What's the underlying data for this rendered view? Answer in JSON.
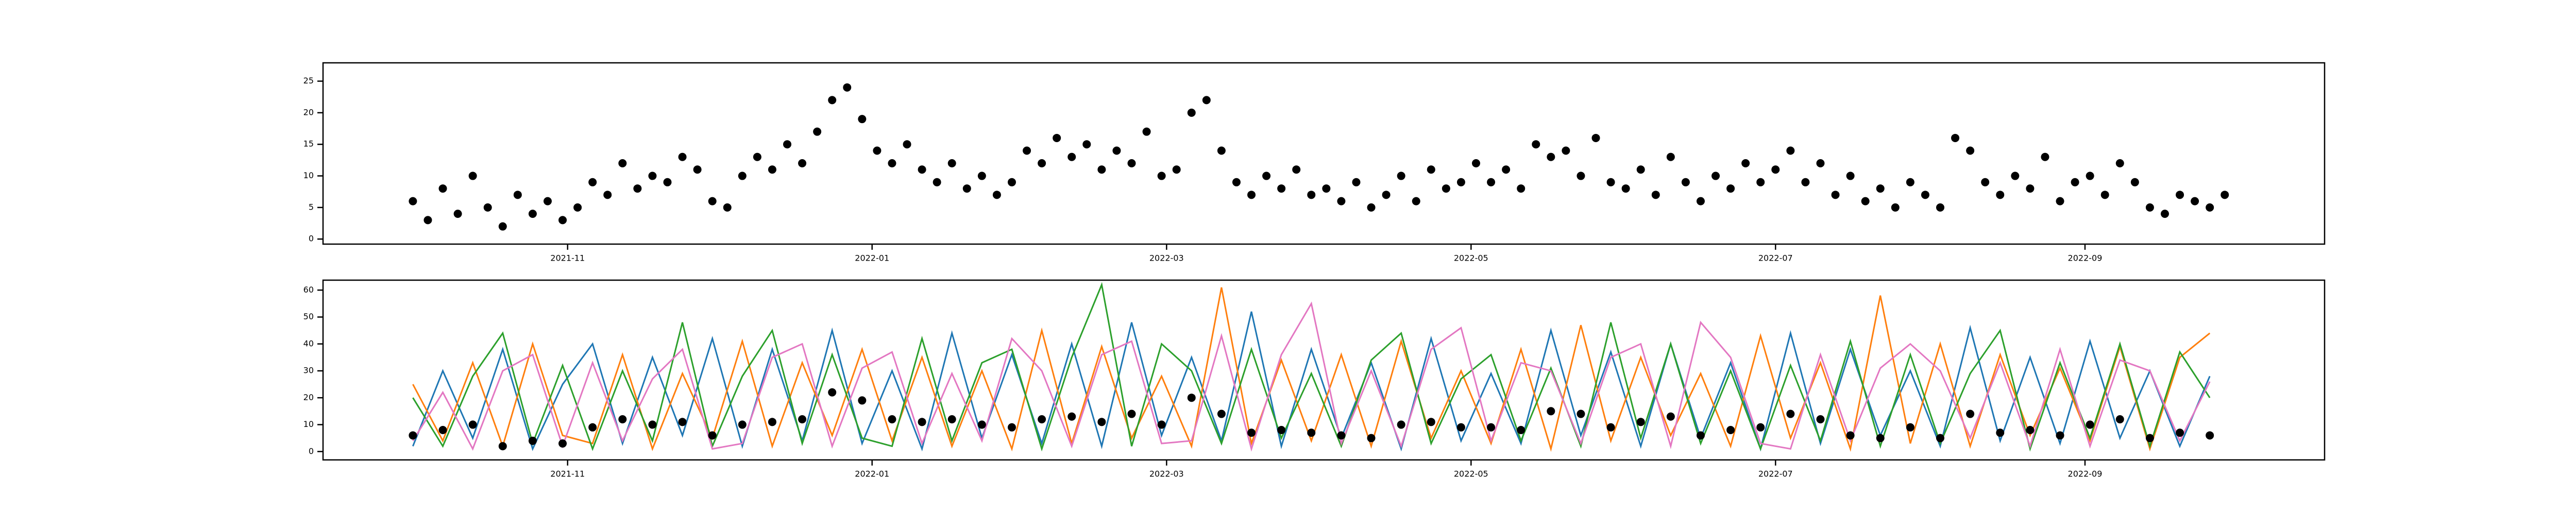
{
  "chart_data": [
    {
      "type": "scatter",
      "color": "#000000",
      "x": [
        "2021-10-01",
        "2021-10-04",
        "2021-10-07",
        "2021-10-10",
        "2021-10-13",
        "2021-10-16",
        "2021-10-19",
        "2021-10-22",
        "2021-10-25",
        "2021-10-28",
        "2021-10-31",
        "2021-11-03",
        "2021-11-06",
        "2021-11-09",
        "2021-11-12",
        "2021-11-15",
        "2021-11-18",
        "2021-11-21",
        "2021-11-24",
        "2021-11-27",
        "2021-11-30",
        "2021-12-03",
        "2021-12-06",
        "2021-12-09",
        "2021-12-12",
        "2021-12-15",
        "2021-12-18",
        "2021-12-21",
        "2021-12-24",
        "2021-12-27",
        "2021-12-30",
        "2022-01-02",
        "2022-01-05",
        "2022-01-08",
        "2022-01-11",
        "2022-01-14",
        "2022-01-17",
        "2022-01-20",
        "2022-01-23",
        "2022-01-26",
        "2022-01-29",
        "2022-02-01",
        "2022-02-04",
        "2022-02-07",
        "2022-02-10",
        "2022-02-13",
        "2022-02-16",
        "2022-02-19",
        "2022-02-22",
        "2022-02-25",
        "2022-02-28",
        "2022-03-03",
        "2022-03-06",
        "2022-03-09",
        "2022-03-12",
        "2022-03-15",
        "2022-03-18",
        "2022-03-21",
        "2022-03-24",
        "2022-03-27",
        "2022-03-30",
        "2022-04-02",
        "2022-04-05",
        "2022-04-08",
        "2022-04-11",
        "2022-04-14",
        "2022-04-17",
        "2022-04-20",
        "2022-04-23",
        "2022-04-26",
        "2022-04-29",
        "2022-05-02",
        "2022-05-05",
        "2022-05-08",
        "2022-05-11",
        "2022-05-14",
        "2022-05-17",
        "2022-05-20",
        "2022-05-23",
        "2022-05-26",
        "2022-05-29",
        "2022-06-01",
        "2022-06-04",
        "2022-06-07",
        "2022-06-10",
        "2022-06-13",
        "2022-06-16",
        "2022-06-19",
        "2022-06-22",
        "2022-06-25",
        "2022-06-28",
        "2022-07-01",
        "2022-07-04",
        "2022-07-07",
        "2022-07-10",
        "2022-07-13",
        "2022-07-16",
        "2022-07-19",
        "2022-07-22",
        "2022-07-25",
        "2022-07-28",
        "2022-07-31",
        "2022-08-03",
        "2022-08-06",
        "2022-08-09",
        "2022-08-12",
        "2022-08-15",
        "2022-08-18",
        "2022-08-21",
        "2022-08-24",
        "2022-08-27",
        "2022-08-30",
        "2022-09-02",
        "2022-09-05",
        "2022-09-08",
        "2022-09-11",
        "2022-09-14",
        "2022-09-17",
        "2022-09-20",
        "2022-09-23",
        "2022-09-26",
        "2022-09-29"
      ],
      "values": [
        6,
        3,
        8,
        4,
        10,
        5,
        2,
        7,
        4,
        6,
        3,
        5,
        9,
        7,
        12,
        8,
        10,
        9,
        13,
        11,
        6,
        5,
        10,
        13,
        11,
        15,
        12,
        17,
        22,
        24,
        19,
        14,
        12,
        15,
        11,
        9,
        12,
        8,
        10,
        7,
        9,
        14,
        12,
        16,
        13,
        15,
        11,
        14,
        12,
        17,
        10,
        11,
        20,
        22,
        14,
        9,
        7,
        10,
        8,
        11,
        7,
        8,
        6,
        9,
        5,
        7,
        10,
        6,
        11,
        8,
        9,
        12,
        9,
        11,
        8,
        15,
        13,
        14,
        10,
        16,
        9,
        8,
        11,
        7,
        13,
        9,
        6,
        10,
        8,
        12,
        9,
        11,
        14,
        9,
        12,
        7,
        10,
        6,
        8,
        5,
        9,
        7,
        5,
        16,
        14,
        9,
        7,
        10,
        8,
        13,
        6,
        9,
        10,
        7,
        12,
        9,
        5,
        4,
        7,
        6,
        5,
        7
      ],
      "xlim": [
        "2021-09-13",
        "2022-10-19"
      ],
      "xticks": [
        {
          "value": "2021-11-01",
          "label": "2021-11"
        },
        {
          "value": "2022-01-01",
          "label": "2022-01"
        },
        {
          "value": "2022-03-01",
          "label": "2022-03"
        },
        {
          "value": "2022-05-01",
          "label": "2022-05"
        },
        {
          "value": "2022-07-01",
          "label": "2022-07"
        },
        {
          "value": "2022-09-01",
          "label": "2022-09"
        }
      ],
      "ylim": [
        -0.8,
        27.9
      ],
      "yticks": [
        0,
        5,
        10,
        15,
        20,
        25
      ],
      "grid": false
    },
    {
      "type": "line",
      "x": [
        "2021-10-01",
        "2021-10-07",
        "2021-10-13",
        "2021-10-19",
        "2021-10-25",
        "2021-10-31",
        "2021-11-06",
        "2021-11-12",
        "2021-11-18",
        "2021-11-24",
        "2021-11-30",
        "2021-12-06",
        "2021-12-12",
        "2021-12-18",
        "2021-12-24",
        "2021-12-30",
        "2022-01-05",
        "2022-01-11",
        "2022-01-17",
        "2022-01-23",
        "2022-01-29",
        "2022-02-04",
        "2022-02-10",
        "2022-02-16",
        "2022-02-22",
        "2022-02-28",
        "2022-03-06",
        "2022-03-12",
        "2022-03-18",
        "2022-03-24",
        "2022-03-30",
        "2022-04-05",
        "2022-04-11",
        "2022-04-17",
        "2022-04-23",
        "2022-04-29",
        "2022-05-05",
        "2022-05-11",
        "2022-05-17",
        "2022-05-23",
        "2022-05-29",
        "2022-06-04",
        "2022-06-10",
        "2022-06-16",
        "2022-06-22",
        "2022-06-28",
        "2022-07-04",
        "2022-07-10",
        "2022-07-16",
        "2022-07-22",
        "2022-07-28",
        "2022-08-03",
        "2022-08-09",
        "2022-08-15",
        "2022-08-21",
        "2022-08-27",
        "2022-09-02",
        "2022-09-08",
        "2022-09-14",
        "2022-09-20",
        "2022-09-26"
      ],
      "series": [
        {
          "color": "#1f77b4",
          "values": [
            2,
            30,
            5,
            38,
            1,
            25,
            40,
            3,
            35,
            6,
            42,
            2,
            38,
            4,
            45,
            3,
            30,
            1,
            44,
            5,
            36,
            3,
            40,
            2,
            48,
            6,
            35,
            4,
            52,
            2,
            38,
            5,
            33,
            1,
            42,
            4,
            29,
            3,
            45,
            6,
            37,
            2,
            40,
            5,
            33,
            1,
            44,
            3,
            38,
            6,
            30,
            2,
            46,
            4,
            35,
            3,
            41,
            5,
            30,
            2,
            28
          ]
        },
        {
          "color": "#ff7f0e",
          "values": [
            25,
            4,
            33,
            2,
            40,
            6,
            3,
            36,
            1,
            29,
            5,
            41,
            2,
            33,
            6,
            38,
            4,
            35,
            2,
            30,
            1,
            45,
            3,
            39,
            5,
            28,
            2,
            61,
            3,
            34,
            4,
            36,
            2,
            41,
            5,
            30,
            3,
            38,
            1,
            47,
            4,
            35,
            6,
            29,
            2,
            43,
            5,
            33,
            1,
            58,
            3,
            40,
            2,
            36,
            6,
            31,
            4,
            39,
            1,
            35,
            44
          ]
        },
        {
          "color": "#2ca02c",
          "values": [
            20,
            2,
            28,
            44,
            3,
            32,
            1,
            30,
            4,
            48,
            2,
            28,
            45,
            3,
            36,
            5,
            2,
            42,
            4,
            33,
            38,
            1,
            35,
            62,
            2,
            40,
            30,
            3,
            38,
            5,
            29,
            2,
            34,
            44,
            3,
            27,
            36,
            4,
            31,
            2,
            48,
            5,
            40,
            3,
            30,
            1,
            32,
            4,
            41,
            2,
            36,
            3,
            29,
            45,
            1,
            33,
            5,
            40,
            2,
            37,
            20
          ]
        },
        {
          "color": "#e377c2",
          "values": [
            4,
            22,
            1,
            30,
            36,
            2,
            33,
            4,
            27,
            38,
            1,
            3,
            35,
            40,
            2,
            31,
            37,
            3,
            29,
            4,
            42,
            30,
            2,
            36,
            41,
            3,
            4,
            43,
            1,
            36,
            55,
            3,
            30,
            2,
            38,
            46,
            4,
            33,
            30,
            3,
            35,
            40,
            2,
            48,
            35,
            3,
            1,
            36,
            4,
            31,
            40,
            30,
            5,
            33,
            2,
            38,
            2,
            34,
            30,
            4,
            26
          ]
        },
        {
          "type": "scatter",
          "color": "#000000",
          "values": [
            6,
            8,
            10,
            2,
            4,
            3,
            9,
            12,
            10,
            11,
            6,
            10,
            11,
            12,
            22,
            19,
            12,
            11,
            12,
            10,
            9,
            12,
            13,
            11,
            14,
            10,
            20,
            14,
            7,
            8,
            7,
            6,
            5,
            10,
            11,
            9,
            9,
            8,
            15,
            14,
            9,
            11,
            13,
            6,
            8,
            9,
            14,
            12,
            6,
            5,
            9,
            5,
            14,
            7,
            8,
            6,
            10,
            12,
            5,
            7,
            6
          ]
        }
      ],
      "xlim": [
        "2021-09-13",
        "2022-10-19"
      ],
      "xticks": [
        {
          "value": "2021-11-01",
          "label": "2021-11"
        },
        {
          "value": "2022-01-01",
          "label": "2022-01"
        },
        {
          "value": "2022-03-01",
          "label": "2022-03"
        },
        {
          "value": "2022-05-01",
          "label": "2022-05"
        },
        {
          "value": "2022-07-01",
          "label": "2022-07"
        },
        {
          "value": "2022-09-01",
          "label": "2022-09"
        }
      ],
      "ylim": [
        -3.1,
        63.7
      ],
      "yticks": [
        0,
        10,
        20,
        30,
        40,
        50,
        60
      ],
      "grid": false
    }
  ]
}
